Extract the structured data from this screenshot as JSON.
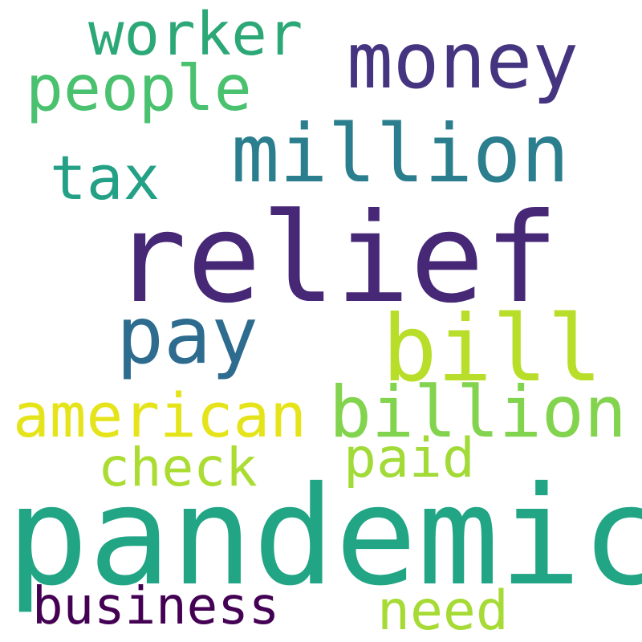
{
  "words": [
    {
      "text": "worker",
      "color": "#2ca877"
    },
    {
      "text": "money",
      "color": "#453580"
    },
    {
      "text": "people",
      "color": "#49c16e"
    },
    {
      "text": "million",
      "color": "#2a7e8e"
    },
    {
      "text": "tax",
      "color": "#24a086"
    },
    {
      "text": "relief",
      "color": "#472877"
    },
    {
      "text": "pay",
      "color": "#2d6c8e"
    },
    {
      "text": "bill",
      "color": "#b8de29"
    },
    {
      "text": "american",
      "color": "#e5e41a"
    },
    {
      "text": "billion",
      "color": "#82d34d"
    },
    {
      "text": "check",
      "color": "#aadc32"
    },
    {
      "text": "paid",
      "color": "#a2da37"
    },
    {
      "text": "pandemic",
      "color": "#21a585"
    },
    {
      "text": "business",
      "color": "#440154"
    },
    {
      "text": "need",
      "color": "#a6db35"
    }
  ]
}
